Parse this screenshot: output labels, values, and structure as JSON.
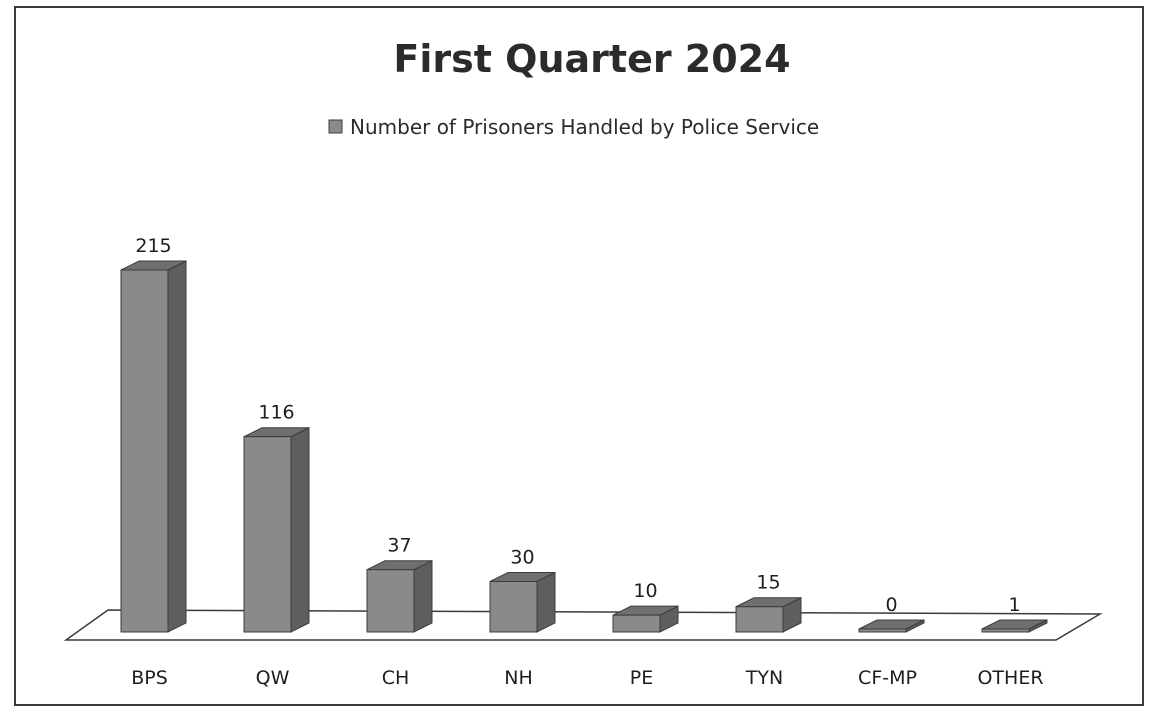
{
  "chart_data": {
    "type": "bar",
    "title": "First Quarter 2024",
    "legend": {
      "position": "top-center",
      "entries": [
        "Number of Prisoners Handled by Police Service"
      ]
    },
    "categories": [
      "BPS",
      "QW",
      "CH",
      "NH",
      "PE",
      "TYN",
      "CF-MP",
      "OTHER"
    ],
    "series": [
      {
        "name": "Number of Prisoners Handled by Police Service",
        "values": [
          215,
          116,
          37,
          30,
          10,
          15,
          0,
          1
        ]
      }
    ],
    "data_labels": true,
    "grid": false,
    "three_d": true,
    "ylim": [
      0,
      215
    ],
    "colors": {
      "front": "#8a8a8a",
      "side": "#5e5e5e",
      "top": "#6f6f6f",
      "outline": "#3c3c3c",
      "floor": "#ffffff"
    }
  }
}
